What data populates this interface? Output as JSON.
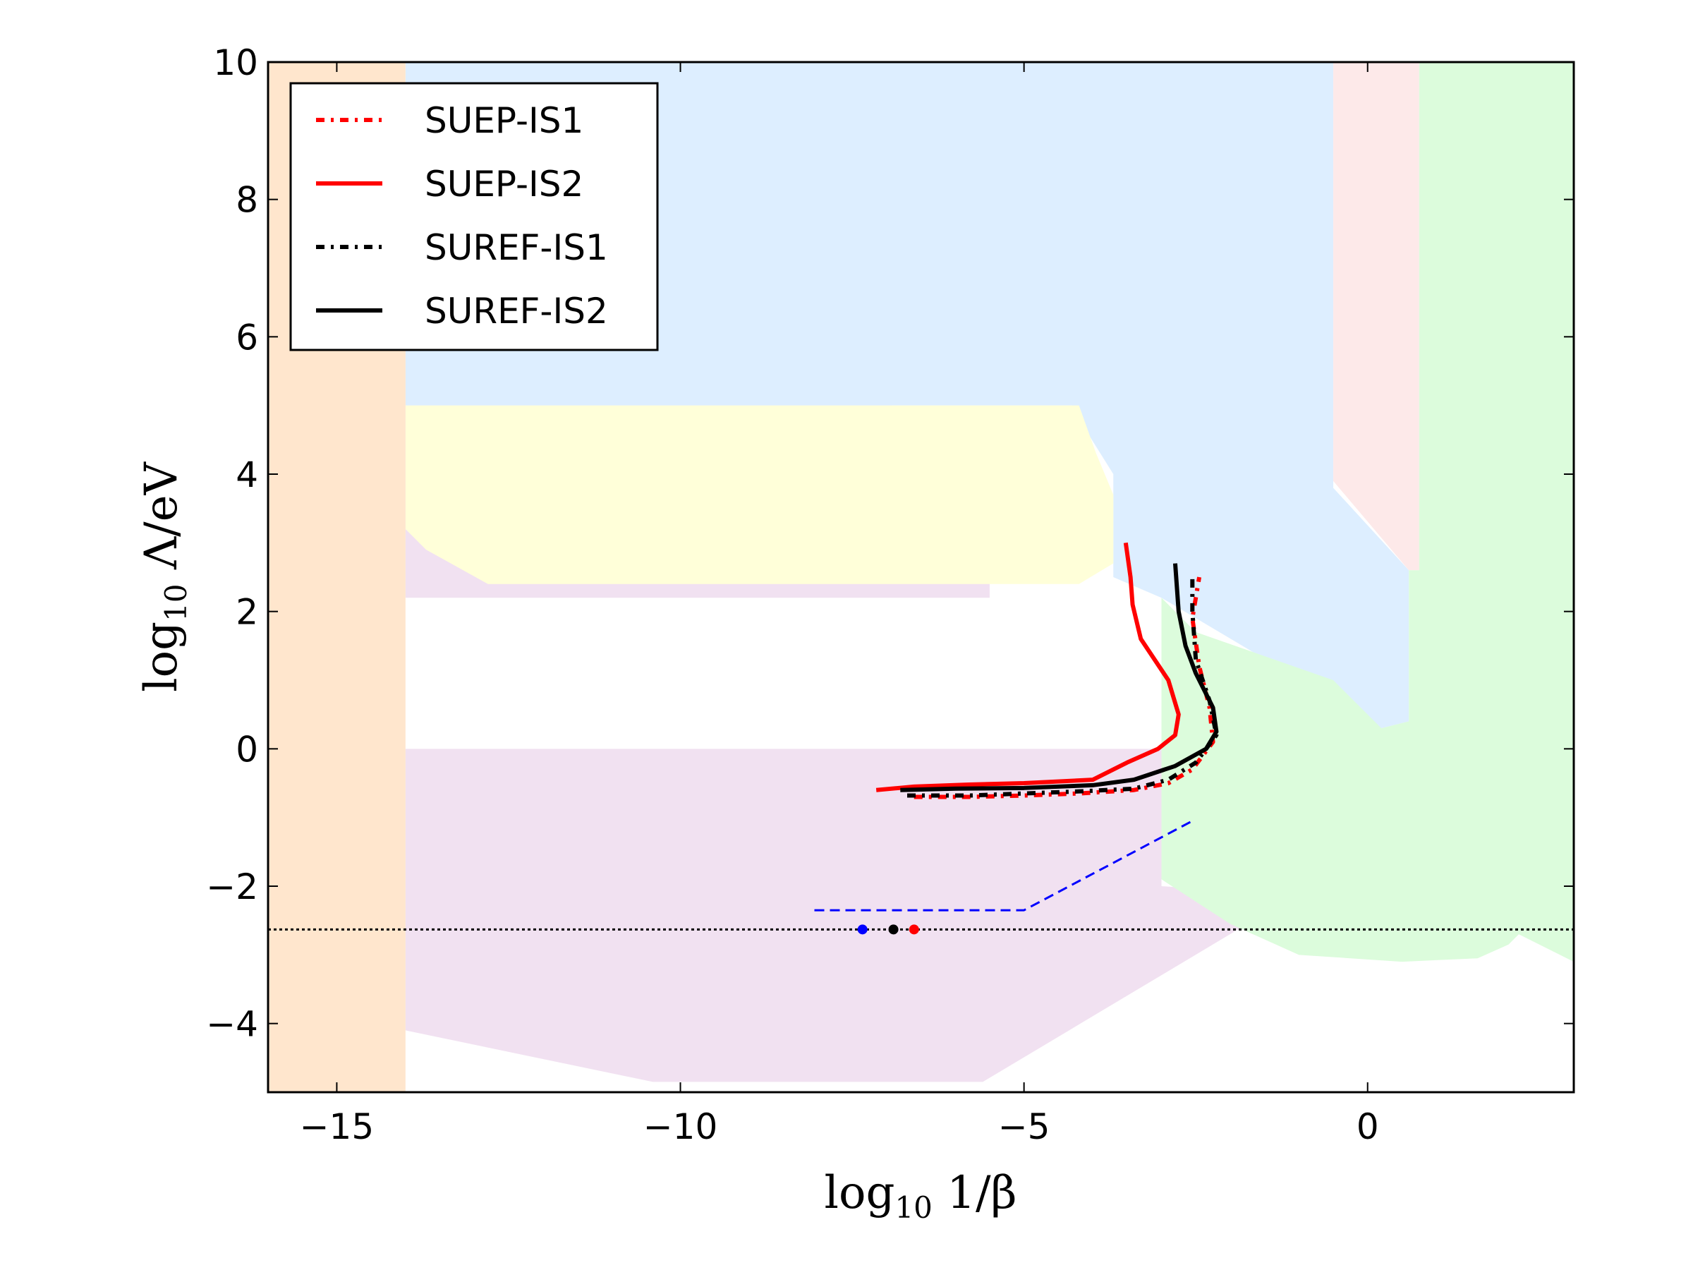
{
  "chart_data": {
    "type": "line",
    "title": "",
    "xlabel": {
      "prefix": "log",
      "subscript": "10",
      "main": " 1/β"
    },
    "ylabel": {
      "prefix": "log",
      "subscript": "10",
      "main": " Λ/eV"
    },
    "xlim": [
      -16,
      3
    ],
    "ylim": [
      -5,
      10
    ],
    "x_ticks": [
      {
        "value": -15,
        "label": "−15"
      },
      {
        "value": -10,
        "label": "−10"
      },
      {
        "value": -5,
        "label": "−5"
      },
      {
        "value": 0,
        "label": "0"
      }
    ],
    "y_ticks": [
      {
        "value": -4,
        "label": "−4"
      },
      {
        "value": -2,
        "label": "−2"
      },
      {
        "value": 0,
        "label": "0"
      },
      {
        "value": 2,
        "label": "2"
      },
      {
        "value": 4,
        "label": "4"
      },
      {
        "value": 6,
        "label": "6"
      },
      {
        "value": 8,
        "label": "8"
      },
      {
        "value": 10,
        "label": "10"
      }
    ],
    "legend_position": "top-left",
    "regions": [
      {
        "name": "lavender",
        "color": "#f1e1f1",
        "points": [
          [
            -14,
            -4.1
          ],
          [
            -10.4,
            -4.85
          ],
          [
            -5.6,
            -4.85
          ],
          [
            -1.5,
            -2.4
          ],
          [
            -1.5,
            -2.1
          ],
          [
            -3,
            -2
          ],
          [
            -3,
            0
          ],
          [
            -14,
            0
          ],
          [
            -14,
            6.75
          ],
          [
            -13,
            6.75
          ],
          [
            -10,
            6.5
          ],
          [
            -5.5,
            4.3
          ],
          [
            -5.5,
            2.2
          ],
          [
            -14,
            2.2
          ]
        ]
      },
      {
        "name": "light-blue",
        "color": "#ddeeff",
        "points": [
          [
            -14,
            10
          ],
          [
            -0.5,
            10
          ],
          [
            -0.5,
            3.8
          ],
          [
            0.6,
            2.6
          ],
          [
            0.6,
            0.4
          ],
          [
            0.2,
            0.3
          ],
          [
            -3,
            2.2
          ],
          [
            -3.7,
            2.5
          ],
          [
            -3.7,
            4
          ],
          [
            -4.2,
            4.8
          ],
          [
            -4.3,
            5
          ],
          [
            -14,
            5
          ]
        ]
      },
      {
        "name": "pink",
        "color": "#fde9e9",
        "points": [
          [
            -0.5,
            10
          ],
          [
            0.75,
            10
          ],
          [
            0.75,
            2.6
          ],
          [
            0.6,
            2.6
          ],
          [
            -0.5,
            3.9
          ]
        ]
      },
      {
        "name": "light-green",
        "color": "#dcfcdc",
        "points": [
          [
            0.75,
            10
          ],
          [
            3,
            10
          ],
          [
            3,
            -3.1
          ],
          [
            2.2,
            -2.7
          ],
          [
            2.05,
            -2.85
          ],
          [
            1.6,
            -3.05
          ],
          [
            0.5,
            -3.1
          ],
          [
            -1,
            -3
          ],
          [
            -2,
            -2.55
          ],
          [
            -3,
            -1.9
          ],
          [
            -3,
            2.2
          ],
          [
            -2.5,
            1.7
          ],
          [
            -0.5,
            1
          ],
          [
            0.2,
            0.3
          ],
          [
            0.6,
            0.4
          ],
          [
            0.6,
            2.6
          ],
          [
            0.75,
            2.6
          ]
        ]
      },
      {
        "name": "light-yellow",
        "color": "#ffffd9",
        "points": [
          [
            -14,
            5
          ],
          [
            -4.2,
            5
          ],
          [
            -3.95,
            4.3
          ],
          [
            -3.7,
            3.7
          ],
          [
            -3.7,
            2.7
          ],
          [
            -4.2,
            2.4
          ],
          [
            -12.8,
            2.4
          ],
          [
            -13.7,
            2.9
          ],
          [
            -14,
            3.2
          ]
        ]
      },
      {
        "name": "peach",
        "color": "#ffe6cd",
        "points": [
          [
            -16,
            -5
          ],
          [
            -14,
            -5
          ],
          [
            -14,
            10
          ],
          [
            -16,
            10
          ]
        ]
      }
    ],
    "series": [
      {
        "name": "SUEP-IS1",
        "color": "#ff0000",
        "style": "dashdot",
        "points": [
          [
            -6.6,
            -0.7
          ],
          [
            -5.8,
            -0.7
          ],
          [
            -5.0,
            -0.68
          ],
          [
            -4.2,
            -0.65
          ],
          [
            -3.4,
            -0.6
          ],
          [
            -2.9,
            -0.5
          ],
          [
            -2.55,
            -0.3
          ],
          [
            -2.25,
            0.1
          ],
          [
            -2.3,
            0.6
          ],
          [
            -2.45,
            1.2
          ],
          [
            -2.55,
            1.9
          ],
          [
            -2.45,
            2.5
          ]
        ]
      },
      {
        "name": "SUEP-IS2",
        "color": "#ff0000",
        "style": "solid",
        "points": [
          [
            -7.15,
            -0.6
          ],
          [
            -6.6,
            -0.55
          ],
          [
            -5.8,
            -0.52
          ],
          [
            -5.0,
            -0.5
          ],
          [
            -4.0,
            -0.45
          ],
          [
            -3.5,
            -0.2
          ],
          [
            -3.05,
            0
          ],
          [
            -2.8,
            0.2
          ],
          [
            -2.75,
            0.5
          ],
          [
            -2.9,
            1
          ],
          [
            -3.1,
            1.3
          ],
          [
            -3.3,
            1.6
          ],
          [
            -3.42,
            2.1
          ],
          [
            -3.45,
            2.5
          ],
          [
            -3.52,
            3
          ]
        ]
      },
      {
        "name": "SUREF-IS1",
        "color": "#000000",
        "style": "dashdot",
        "points": [
          [
            -6.7,
            -0.68
          ],
          [
            -5.8,
            -0.68
          ],
          [
            -5.0,
            -0.65
          ],
          [
            -4.2,
            -0.62
          ],
          [
            -3.4,
            -0.58
          ],
          [
            -2.9,
            -0.45
          ],
          [
            -2.5,
            -0.2
          ],
          [
            -2.2,
            0.2
          ],
          [
            -2.3,
            0.7
          ],
          [
            -2.5,
            1.3
          ],
          [
            -2.55,
            2
          ],
          [
            -2.55,
            2.55
          ]
        ]
      },
      {
        "name": "SUREF-IS2",
        "color": "#000000",
        "style": "solid",
        "points": [
          [
            -6.8,
            -0.6
          ],
          [
            -6.0,
            -0.58
          ],
          [
            -5.0,
            -0.57
          ],
          [
            -4.0,
            -0.53
          ],
          [
            -3.4,
            -0.45
          ],
          [
            -2.8,
            -0.25
          ],
          [
            -2.35,
            0
          ],
          [
            -2.2,
            0.25
          ],
          [
            -2.25,
            0.6
          ],
          [
            -2.5,
            1.1
          ],
          [
            -2.65,
            1.5
          ],
          [
            -2.75,
            2
          ],
          [
            -2.8,
            2.7
          ]
        ]
      },
      {
        "name": "blue-dashed",
        "color": "#0000ff",
        "style": "dashed",
        "points": [
          [
            -8.05,
            -2.35
          ],
          [
            -5.0,
            -2.35
          ],
          [
            -2.55,
            -1.05
          ]
        ]
      },
      {
        "name": "horizontal-dotted",
        "color": "#000000",
        "style": "dotted",
        "points": [
          [
            -16,
            -2.63
          ],
          [
            3,
            -2.63
          ]
        ]
      }
    ],
    "markers": [
      {
        "name": "blue-marker",
        "color": "#0000ff",
        "x": -7.35,
        "y": -2.63
      },
      {
        "name": "black-marker",
        "color": "#000000",
        "x": -6.9,
        "y": -2.63
      },
      {
        "name": "red-marker",
        "color": "#ff0000",
        "x": -6.6,
        "y": -2.63
      }
    ],
    "legend": [
      {
        "label": "SUEP-IS1",
        "color": "#ff0000",
        "style": "dashdot"
      },
      {
        "label": "SUEP-IS2",
        "color": "#ff0000",
        "style": "solid"
      },
      {
        "label": "SUREF-IS1",
        "color": "#000000",
        "style": "dashdot"
      },
      {
        "label": "SUREF-IS2",
        "color": "#000000",
        "style": "solid"
      }
    ]
  }
}
